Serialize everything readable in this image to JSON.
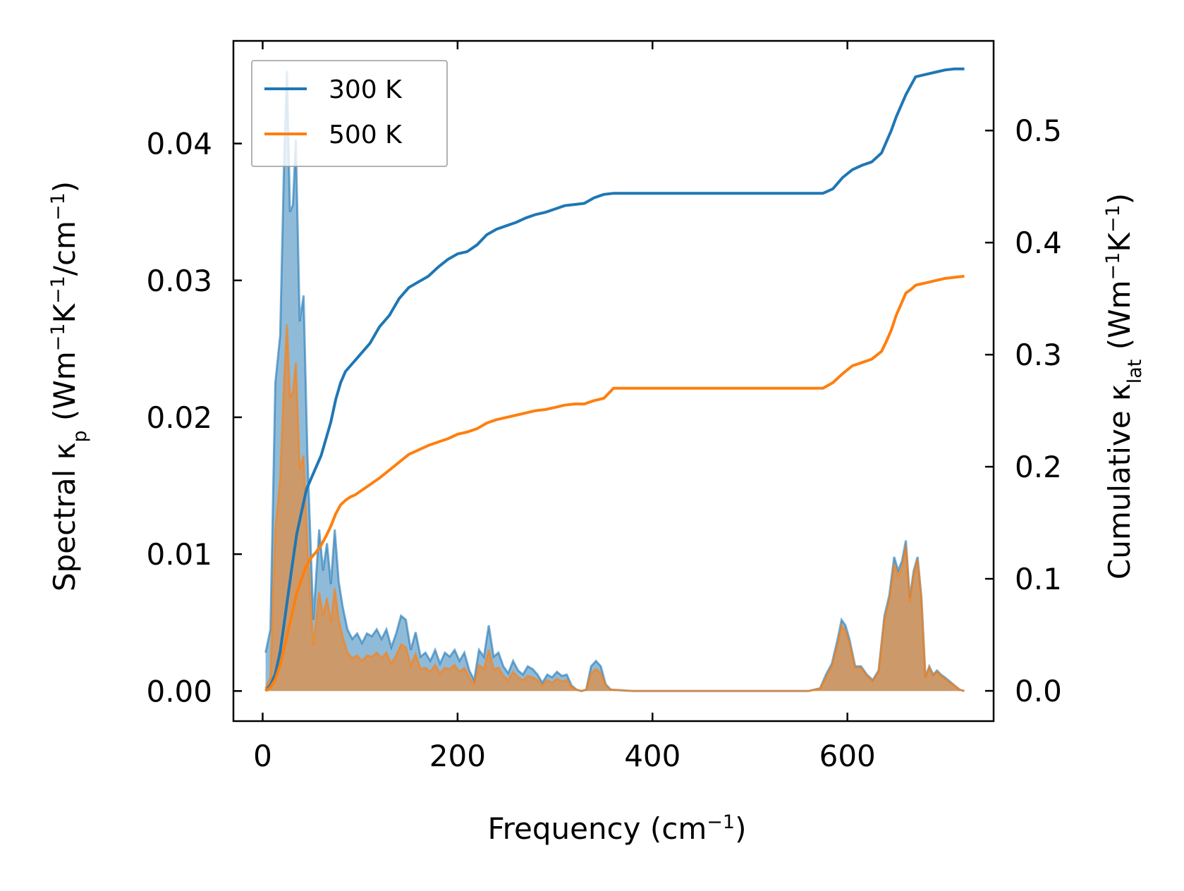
{
  "chart_data": {
    "type": "area",
    "xlabel": {
      "main": "Frequency (cm",
      "sup": "−1",
      "tail": ")"
    },
    "ylabel_left": {
      "t1": "Spectral κ",
      "sub": "p",
      "t2": " (Wm",
      "sup1": "−1",
      "t3": "K",
      "sup2": "−1",
      "t4": "/cm",
      "sup3": "−1",
      "t5": ")"
    },
    "ylabel_right": {
      "t1": "Cumulative κ",
      "sub": "lat",
      "t2": " (Wm",
      "sup1": "−1",
      "t3": "K",
      "sup2": "−1",
      "t4": ")"
    },
    "xlim": [
      -30,
      750
    ],
    "ylim_left": [
      -0.0022,
      0.0475
    ],
    "ylim_right": [
      -0.027,
      0.58
    ],
    "xticks": [
      0,
      200,
      400,
      600
    ],
    "xtick_labels": [
      "0",
      "200",
      "400",
      "600"
    ],
    "yticks_left": [
      0.0,
      0.01,
      0.02,
      0.03,
      0.04
    ],
    "ytick_labels_left": [
      "0.00",
      "0.01",
      "0.02",
      "0.03",
      "0.04"
    ],
    "yticks_right": [
      0.0,
      0.1,
      0.2,
      0.3,
      0.4,
      0.5
    ],
    "ytick_labels_right": [
      "0.0",
      "0.1",
      "0.2",
      "0.3",
      "0.4",
      "0.5"
    ],
    "legend": {
      "position": "upper-left",
      "entries": [
        "300 K",
        "500 K"
      ]
    },
    "colors": {
      "300 K": "#1f77b4",
      "500 K": "#ff7f0e"
    },
    "series": [
      {
        "name": "300 K",
        "spectral": {
          "x": [
            3,
            8,
            13,
            18,
            22,
            25,
            28,
            31,
            34,
            38,
            42,
            46,
            52,
            58,
            62,
            66,
            70,
            74,
            78,
            82,
            87,
            92,
            97,
            102,
            107,
            112,
            117,
            122,
            127,
            132,
            137,
            142,
            147,
            152,
            157,
            162,
            167,
            172,
            177,
            182,
            187,
            192,
            197,
            202,
            207,
            212,
            217,
            222,
            227,
            232,
            237,
            242,
            247,
            252,
            257,
            262,
            267,
            272,
            277,
            282,
            287,
            292,
            297,
            302,
            307,
            312,
            317,
            322,
            327,
            332,
            337,
            342,
            347,
            352,
            357,
            380,
            420,
            470,
            520,
            560,
            572,
            578,
            584,
            590,
            594,
            598,
            602,
            608,
            614,
            620,
            626,
            632,
            638,
            643,
            648,
            652,
            656,
            660,
            664,
            668,
            672,
            676,
            680,
            684,
            688,
            692,
            696,
            700,
            705,
            710,
            715,
            720
          ],
          "y": [
            0.0028,
            0.0045,
            0.0225,
            0.026,
            0.0388,
            0.0453,
            0.035,
            0.0355,
            0.0403,
            0.027,
            0.0289,
            0.0172,
            0.0052,
            0.0118,
            0.0088,
            0.0108,
            0.0078,
            0.0118,
            0.008,
            0.0062,
            0.0045,
            0.0038,
            0.0042,
            0.0035,
            0.0042,
            0.004,
            0.0045,
            0.0038,
            0.0045,
            0.0032,
            0.0042,
            0.0055,
            0.0052,
            0.003,
            0.0043,
            0.0025,
            0.0028,
            0.0022,
            0.003,
            0.002,
            0.0028,
            0.0025,
            0.003,
            0.0022,
            0.0028,
            0.0015,
            0.0008,
            0.003,
            0.0025,
            0.0048,
            0.0025,
            0.0028,
            0.0018,
            0.0013,
            0.0022,
            0.0015,
            0.0012,
            0.0018,
            0.0016,
            0.0012,
            0.0006,
            0.0012,
            0.001,
            0.0014,
            0.0011,
            0.0012,
            0.0004,
            0.0001,
            0.0,
            0.0001,
            0.0018,
            0.0022,
            0.0018,
            0.0005,
            0.0001,
            0.0,
            0.0,
            0.0,
            0.0,
            0.0,
            0.0002,
            0.0012,
            0.002,
            0.0038,
            0.0052,
            0.0048,
            0.0038,
            0.0018,
            0.0018,
            0.0012,
            0.0008,
            0.0015,
            0.0055,
            0.007,
            0.0098,
            0.0088,
            0.0095,
            0.011,
            0.0068,
            0.0088,
            0.0098,
            0.0068,
            0.001,
            0.0018,
            0.0012,
            0.0015,
            0.0012,
            0.001,
            0.0007,
            0.0004,
            0.0001,
            0.0
          ]
        },
        "cumulative": {
          "x": [
            3,
            8,
            13,
            18,
            22,
            26,
            30,
            35,
            40,
            45,
            50,
            55,
            60,
            65,
            70,
            75,
            80,
            85,
            90,
            95,
            100,
            110,
            120,
            130,
            140,
            150,
            160,
            170,
            180,
            190,
            200,
            210,
            220,
            230,
            240,
            250,
            260,
            270,
            280,
            290,
            300,
            310,
            320,
            330,
            340,
            350,
            360,
            380,
            400,
            450,
            500,
            550,
            575,
            585,
            595,
            605,
            615,
            625,
            635,
            640,
            645,
            650,
            655,
            660,
            665,
            670,
            675,
            680,
            690,
            700,
            710,
            720
          ],
          "y": [
            0.0,
            0.005,
            0.015,
            0.035,
            0.06,
            0.085,
            0.11,
            0.14,
            0.16,
            0.18,
            0.19,
            0.2,
            0.21,
            0.225,
            0.24,
            0.26,
            0.275,
            0.285,
            0.29,
            0.295,
            0.3,
            0.31,
            0.325,
            0.335,
            0.35,
            0.36,
            0.365,
            0.37,
            0.378,
            0.385,
            0.39,
            0.392,
            0.398,
            0.407,
            0.412,
            0.415,
            0.418,
            0.422,
            0.425,
            0.427,
            0.43,
            0.433,
            0.434,
            0.435,
            0.44,
            0.443,
            0.444,
            0.444,
            0.444,
            0.444,
            0.444,
            0.444,
            0.444,
            0.448,
            0.458,
            0.465,
            0.469,
            0.472,
            0.48,
            0.49,
            0.5,
            0.512,
            0.522,
            0.532,
            0.54,
            0.548,
            0.549,
            0.55,
            0.552,
            0.554,
            0.555,
            0.555
          ]
        }
      },
      {
        "name": "500 K",
        "spectral": {
          "x": [
            3,
            8,
            13,
            18,
            22,
            25,
            28,
            31,
            34,
            38,
            42,
            46,
            52,
            58,
            62,
            66,
            70,
            74,
            78,
            82,
            87,
            92,
            97,
            102,
            107,
            112,
            117,
            122,
            127,
            132,
            137,
            142,
            147,
            152,
            157,
            162,
            167,
            172,
            177,
            182,
            187,
            192,
            197,
            202,
            207,
            212,
            217,
            222,
            227,
            232,
            237,
            242,
            247,
            252,
            257,
            262,
            267,
            272,
            277,
            282,
            287,
            292,
            297,
            302,
            307,
            312,
            317,
            322,
            327,
            332,
            337,
            342,
            347,
            352,
            357,
            380,
            420,
            470,
            520,
            560,
            572,
            578,
            584,
            590,
            594,
            598,
            602,
            608,
            614,
            620,
            626,
            632,
            638,
            643,
            648,
            652,
            656,
            660,
            664,
            668,
            672,
            676,
            680,
            684,
            688,
            692,
            696,
            700,
            705,
            710,
            715,
            720
          ],
          "y": [
            0.0002,
            0.001,
            0.0118,
            0.0155,
            0.0228,
            0.0268,
            0.0215,
            0.0218,
            0.024,
            0.0162,
            0.0172,
            0.0105,
            0.0033,
            0.0072,
            0.0055,
            0.0068,
            0.005,
            0.0075,
            0.0052,
            0.004,
            0.0028,
            0.0024,
            0.0026,
            0.0022,
            0.0026,
            0.0025,
            0.0028,
            0.0024,
            0.0028,
            0.002,
            0.0026,
            0.0034,
            0.0032,
            0.0019,
            0.0027,
            0.0016,
            0.0017,
            0.0014,
            0.0019,
            0.0013,
            0.0017,
            0.0016,
            0.0019,
            0.0014,
            0.0017,
            0.001,
            0.0005,
            0.0019,
            0.0016,
            0.003,
            0.0016,
            0.0017,
            0.0011,
            0.0008,
            0.0014,
            0.001,
            0.0008,
            0.0011,
            0.001,
            0.0008,
            0.0004,
            0.0008,
            0.0006,
            0.0009,
            0.0007,
            0.0008,
            0.0003,
            0.0001,
            0.0,
            0.0001,
            0.0013,
            0.0016,
            0.0013,
            0.0004,
            0.0001,
            0.0,
            0.0,
            0.0,
            0.0,
            0.0,
            0.0002,
            0.001,
            0.0018,
            0.0034,
            0.0048,
            0.0044,
            0.0035,
            0.0017,
            0.0017,
            0.0011,
            0.0007,
            0.0014,
            0.0052,
            0.0066,
            0.0093,
            0.0084,
            0.009,
            0.0106,
            0.0065,
            0.0085,
            0.0096,
            0.0066,
            0.001,
            0.0017,
            0.0011,
            0.0014,
            0.0011,
            0.0009,
            0.0006,
            0.0004,
            0.0001,
            0.0
          ]
        },
        "cumulative": {
          "x": [
            3,
            8,
            13,
            18,
            22,
            26,
            30,
            35,
            40,
            45,
            50,
            55,
            60,
            65,
            70,
            75,
            80,
            85,
            90,
            95,
            100,
            110,
            120,
            130,
            140,
            150,
            160,
            170,
            180,
            190,
            200,
            210,
            220,
            230,
            240,
            250,
            260,
            270,
            280,
            290,
            300,
            310,
            320,
            330,
            340,
            350,
            360,
            380,
            400,
            450,
            500,
            550,
            575,
            585,
            595,
            605,
            615,
            625,
            635,
            640,
            645,
            650,
            655,
            660,
            665,
            670,
            675,
            680,
            690,
            700,
            710,
            720
          ],
          "y": [
            0.0,
            0.003,
            0.01,
            0.023,
            0.038,
            0.053,
            0.068,
            0.087,
            0.1,
            0.112,
            0.119,
            0.124,
            0.13,
            0.138,
            0.147,
            0.158,
            0.166,
            0.17,
            0.173,
            0.175,
            0.178,
            0.184,
            0.19,
            0.197,
            0.204,
            0.211,
            0.215,
            0.219,
            0.222,
            0.225,
            0.229,
            0.231,
            0.234,
            0.239,
            0.242,
            0.244,
            0.246,
            0.248,
            0.25,
            0.251,
            0.253,
            0.255,
            0.256,
            0.256,
            0.259,
            0.261,
            0.27,
            0.27,
            0.27,
            0.27,
            0.27,
            0.27,
            0.27,
            0.275,
            0.283,
            0.29,
            0.293,
            0.296,
            0.303,
            0.312,
            0.322,
            0.335,
            0.345,
            0.355,
            0.358,
            0.362,
            0.363,
            0.364,
            0.366,
            0.368,
            0.369,
            0.37
          ]
        }
      }
    ]
  }
}
